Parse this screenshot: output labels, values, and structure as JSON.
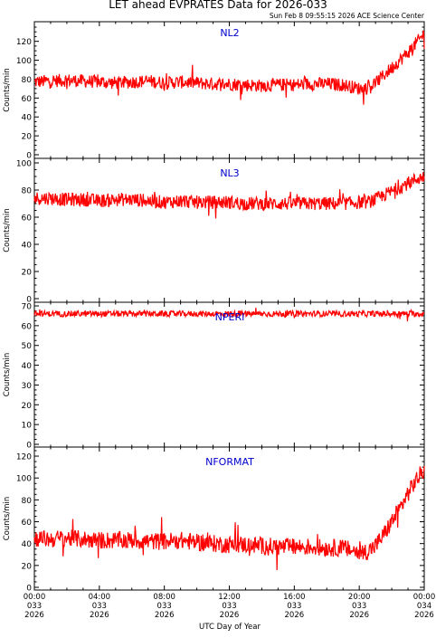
{
  "page": {
    "title": "LET ahead EVPRATES Data for 2026-033",
    "timestamp": "Sun Feb  8 09:55:15 2026 ACE Science Center",
    "xlabel": "UTC Day of Year"
  },
  "colors": {
    "data": "#ff0000",
    "panel_label": "#0000cc",
    "axis": "#000000"
  },
  "chart_data": [
    {
      "type": "line",
      "name": "NL2",
      "ylabel": "Counts/min",
      "ylim": [
        0,
        135
      ],
      "yticks": [
        0,
        20,
        40,
        60,
        80,
        100,
        120
      ],
      "x": [
        0,
        1,
        2,
        3,
        4,
        5,
        6,
        7,
        8,
        9,
        10,
        11,
        12,
        13,
        14,
        15,
        16,
        17,
        18,
        19,
        20,
        20.5,
        21,
        21.5,
        22,
        22.5,
        23,
        23.5,
        24
      ],
      "values": [
        77,
        78,
        79,
        78,
        77,
        76,
        77,
        78,
        76,
        77,
        76,
        75,
        75,
        74,
        73,
        74,
        74,
        75,
        75,
        74,
        70,
        71,
        76,
        84,
        92,
        100,
        108,
        118,
        128
      ],
      "spread": 7
    },
    {
      "type": "line",
      "name": "NL3",
      "ylabel": "Counts/min",
      "ylim": [
        0,
        100
      ],
      "yticks": [
        0,
        20,
        40,
        60,
        80,
        100
      ],
      "x": [
        0,
        1,
        2,
        3,
        4,
        5,
        6,
        7,
        8,
        9,
        10,
        11,
        12,
        13,
        14,
        15,
        16,
        17,
        18,
        19,
        20,
        20.5,
        21,
        21.5,
        22,
        22.5,
        23,
        23.5,
        24
      ],
      "values": [
        74,
        74,
        73,
        73,
        72,
        73,
        73,
        72,
        71,
        72,
        71,
        71,
        71,
        70,
        70,
        70,
        70,
        70,
        70,
        70,
        71,
        71,
        73,
        76,
        79,
        82,
        85,
        88,
        90
      ],
      "spread": 5
    },
    {
      "type": "line",
      "name": "NPERI",
      "ylabel": "Counts/min",
      "ylim": [
        0,
        70
      ],
      "yticks": [
        0,
        10,
        20,
        30,
        40,
        50,
        60,
        70
      ],
      "x": [
        0,
        6,
        12,
        18,
        24
      ],
      "values": [
        66,
        66,
        66,
        66,
        66
      ],
      "spread": 1.5
    },
    {
      "type": "line",
      "name": "NFORMAT",
      "ylabel": "Counts/min",
      "ylim": [
        0,
        125
      ],
      "yticks": [
        0,
        20,
        40,
        60,
        80,
        100,
        120
      ],
      "x": [
        0,
        1,
        2,
        3,
        4,
        5,
        6,
        7,
        8,
        9,
        10,
        11,
        12,
        13,
        14,
        15,
        16,
        17,
        18,
        19,
        20,
        20.5,
        21,
        21.5,
        22,
        22.5,
        23,
        23.5,
        24
      ],
      "values": [
        45,
        44,
        45,
        44,
        43,
        43,
        43,
        42,
        42,
        43,
        41,
        40,
        39,
        39,
        38,
        37,
        37,
        37,
        36,
        36,
        32,
        33,
        38,
        48,
        60,
        72,
        86,
        98,
        108
      ],
      "spread": 8
    }
  ],
  "xaxis": {
    "range": [
      0,
      24
    ],
    "ticks": [
      {
        "hour": 0,
        "time": "00:00",
        "doy": "033",
        "year": "2026"
      },
      {
        "hour": 4,
        "time": "04:00",
        "doy": "033",
        "year": "2026"
      },
      {
        "hour": 8,
        "time": "08:00",
        "doy": "033",
        "year": "2026"
      },
      {
        "hour": 12,
        "time": "12:00",
        "doy": "033",
        "year": "2026"
      },
      {
        "hour": 16,
        "time": "16:00",
        "doy": "033",
        "year": "2026"
      },
      {
        "hour": 20,
        "time": "20:00",
        "doy": "033",
        "year": "2026"
      },
      {
        "hour": 24,
        "time": "00:00",
        "doy": "034",
        "year": "2026"
      }
    ]
  }
}
